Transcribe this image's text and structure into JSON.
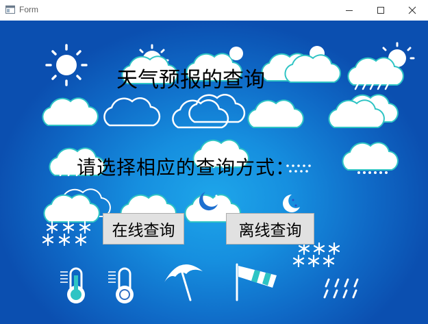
{
  "window": {
    "title": "Form",
    "controls": {
      "minimize": "minimize-icon",
      "maximize": "maximize-icon",
      "close": "close-icon"
    }
  },
  "main": {
    "title": "天气预报的查询",
    "prompt": "请选择相应的查询方式：",
    "buttons": {
      "online": "在线查询",
      "offline": "离线查询"
    }
  },
  "background": {
    "description_icons": [
      "sun-icon",
      "sun-cloud-icon",
      "cloud-icon",
      "cloud-rain-icon",
      "cloud-snow-icon",
      "moon-cloud-icon",
      "snowflake-icon",
      "thermometer-icon",
      "umbrella-icon",
      "windsock-icon",
      "rain-icon"
    ],
    "colors": {
      "gradient_center": "#1ea6ea",
      "gradient_edge": "#0b4fb0",
      "icon_fill": "#ffffff",
      "icon_accent": "#2ec4c4"
    }
  }
}
